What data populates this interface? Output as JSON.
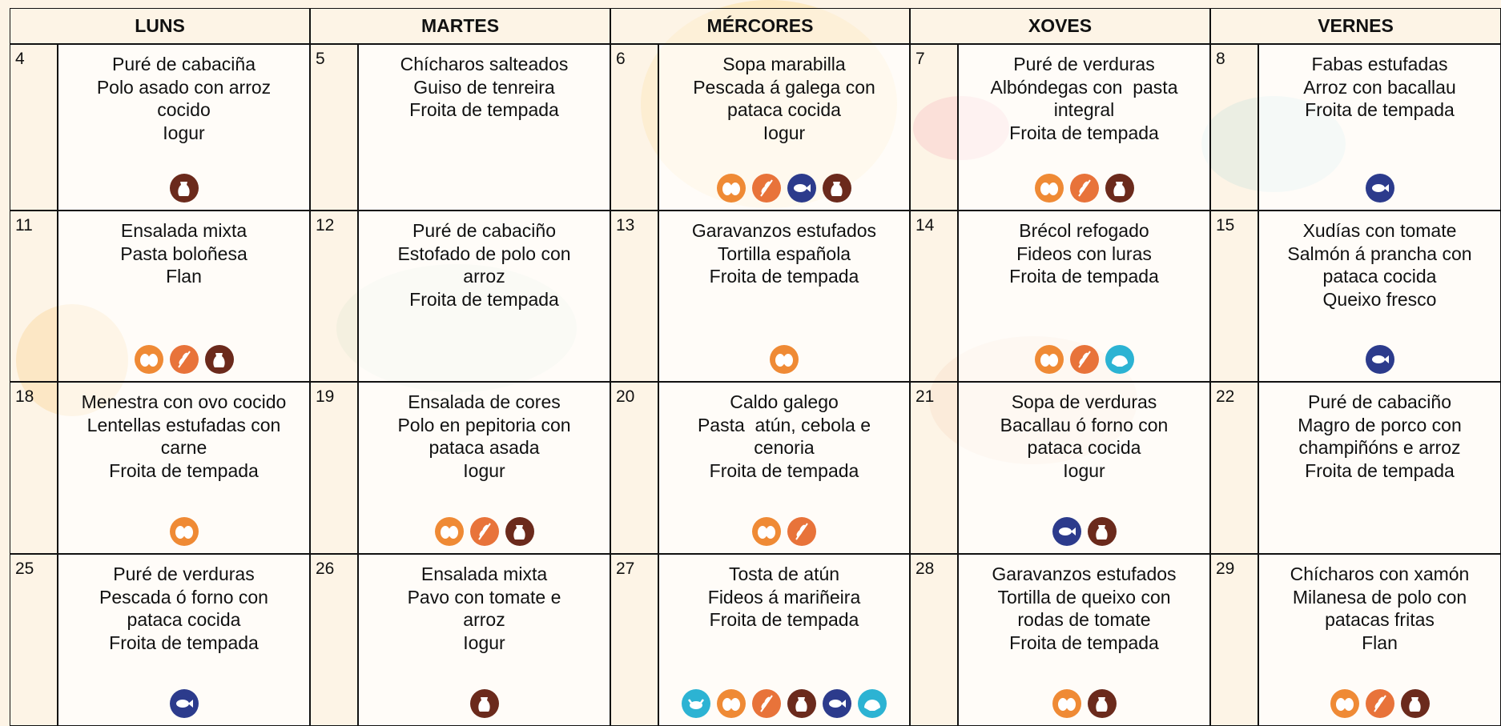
{
  "header": {
    "days": [
      "LUNS",
      "MARTES",
      "MÉRCORES",
      "XOVES",
      "VERNES"
    ]
  },
  "weeks": [
    {
      "days": [
        {
          "date": "4",
          "lines": [
            "Puré de cabaciña",
            "Polo asado con arroz",
            "cocido",
            "Iogur"
          ]
        },
        {
          "date": "5",
          "lines": [
            "Chícharos salteados",
            "Guiso de tenreira",
            "Froita de tempada"
          ]
        },
        {
          "date": "6",
          "lines": [
            "Sopa marabilla",
            "Pescada á galega con",
            "pataca cocida",
            "Iogur"
          ]
        },
        {
          "date": "7",
          "lines": [
            "Puré de verduras",
            "Albóndegas con  pasta",
            "integral",
            "Froita de tempada"
          ]
        },
        {
          "date": "8",
          "lines": [
            "Fabas estufadas",
            "Arroz con bacallau",
            "Froita de tempada"
          ]
        }
      ]
    },
    {
      "days": [
        {
          "date": "11",
          "lines": [
            "Ensalada mixta",
            "Pasta boloñesa",
            "Flan"
          ]
        },
        {
          "date": "12",
          "lines": [
            "Puré de cabaciño",
            "Estofado de polo con",
            "arroz",
            "Froita de tempada"
          ]
        },
        {
          "date": "13",
          "lines": [
            "Garavanzos estufados",
            "Tortilla española",
            "Froita de tempada"
          ]
        },
        {
          "date": "14",
          "lines": [
            "Brécol refogado",
            "Fideos con luras",
            "Froita de tempada"
          ]
        },
        {
          "date": "15",
          "lines": [
            "Xudías con tomate",
            "Salmón á prancha con",
            "pataca cocida",
            "Queixo fresco"
          ]
        }
      ]
    },
    {
      "days": [
        {
          "date": "18",
          "lines": [
            "Menestra con ovo cocido",
            "Lentellas estufadas con",
            "carne",
            "Froita de tempada"
          ]
        },
        {
          "date": "19",
          "lines": [
            "Ensalada de cores",
            "Polo en pepitoria con",
            "pataca asada",
            "Iogur"
          ]
        },
        {
          "date": "20",
          "lines": [
            "Caldo galego",
            "Pasta  atún, cebola e",
            "cenoria",
            "Froita de tempada"
          ]
        },
        {
          "date": "21",
          "lines": [
            "Sopa de verduras",
            "Bacallau ó forno con",
            "pataca cocida",
            "Iogur"
          ]
        },
        {
          "date": "22",
          "lines": [
            "Puré de cabaciño",
            "Magro de porco con",
            "champiñóns e arroz",
            "Froita de tempada"
          ]
        }
      ]
    },
    {
      "days": [
        {
          "date": "25",
          "lines": [
            "Puré de verduras",
            "Pescada ó forno con",
            "pataca cocida",
            "Froita de tempada"
          ]
        },
        {
          "date": "26",
          "lines": [
            "Ensalada mixta",
            "Pavo con tomate e",
            "arroz",
            "Iogur"
          ]
        },
        {
          "date": "27",
          "lines": [
            "Tosta de atún",
            "Fideos á mariñeira",
            "Froita de tempada"
          ]
        },
        {
          "date": "28",
          "lines": [
            "Garavanzos estufados",
            "Tortilla de queixo con",
            "rodas de tomate",
            "Froita de tempada"
          ]
        },
        {
          "date": "29",
          "lines": [
            "Chícharos con xamón",
            "Milanesa de polo con",
            "patacas fritas",
            "Flan"
          ]
        }
      ]
    }
  ]
}
